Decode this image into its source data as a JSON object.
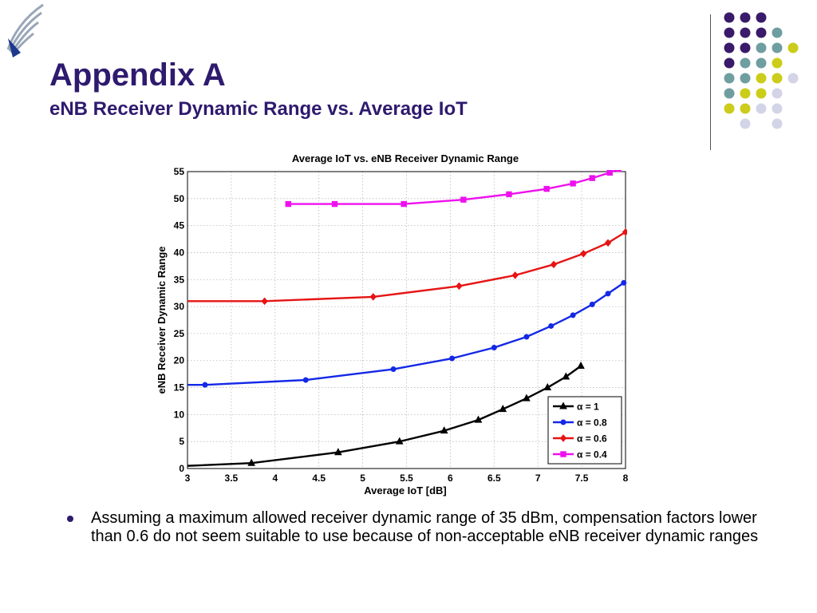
{
  "slide": {
    "title": "Appendix A",
    "subtitle": "eNB Receiver Dynamic Range vs. Average IoT",
    "title_color": "#2e1a6e",
    "logo_icon": "wing-logo-icon",
    "dot_colors": [
      "#3a1a6a",
      "#6f9ea0",
      "#cccc1a",
      "#d4d4e8"
    ],
    "bullets": [
      "Assuming a maximum allowed receiver dynamic range of 35 dBm, compensation factors lower than 0.6 do not seem suitable to use because of non-acceptable eNB receiver dynamic ranges"
    ]
  },
  "chart_data": {
    "type": "line",
    "title": "Average IoT vs. eNB Receiver Dynamic Range",
    "xlabel": "Average IoT [dB]",
    "ylabel": "eNB Receiver Dynamic Range",
    "xlim": [
      3,
      8
    ],
    "ylim": [
      0,
      55
    ],
    "xticks": [
      "3",
      "3.5",
      "4",
      "4.5",
      "5",
      "5.5",
      "6",
      "6.5",
      "7",
      "7.5",
      "8"
    ],
    "yticks": [
      "0",
      "5",
      "10",
      "15",
      "20",
      "25",
      "30",
      "35",
      "40",
      "45",
      "50",
      "55"
    ],
    "grid": true,
    "legend_position": "bottom-right",
    "series": [
      {
        "name": "α = 1",
        "color": "#000000",
        "marker": "triangle",
        "x": [
          3.0,
          3.73,
          4.72,
          5.42,
          5.93,
          6.32,
          6.6,
          6.87,
          7.11,
          7.32,
          7.49
        ],
        "y": [
          0.5,
          1.0,
          3.0,
          5.0,
          7.0,
          9.0,
          11.0,
          13.0,
          15.0,
          17.0,
          19.0
        ]
      },
      {
        "name": "α = 0.8",
        "color": "#1428e6",
        "marker": "dot",
        "x": [
          3.0,
          3.2,
          4.35,
          5.35,
          6.02,
          6.5,
          6.87,
          7.15,
          7.4,
          7.62,
          7.8,
          7.98
        ],
        "y": [
          15.5,
          15.5,
          16.4,
          18.4,
          20.4,
          22.4,
          24.4,
          26.4,
          28.4,
          30.4,
          32.4,
          34.4
        ]
      },
      {
        "name": "α = 0.6",
        "color": "#e61414",
        "marker": "diamond",
        "x": [
          3.0,
          3.88,
          5.12,
          6.1,
          6.74,
          7.18,
          7.52,
          7.8,
          8.0
        ],
        "y": [
          31.0,
          31.0,
          31.8,
          33.8,
          35.8,
          37.8,
          39.8,
          41.8,
          43.8
        ]
      },
      {
        "name": "α = 0.4",
        "color": "#ee10ee",
        "marker": "square",
        "x": [
          4.15,
          4.68,
          5.47,
          6.15,
          6.67,
          7.1,
          7.4,
          7.62,
          7.82,
          7.92
        ],
        "y": [
          49.0,
          49.0,
          49.0,
          49.8,
          50.8,
          51.8,
          52.8,
          53.8,
          54.8,
          55.5
        ]
      }
    ]
  }
}
